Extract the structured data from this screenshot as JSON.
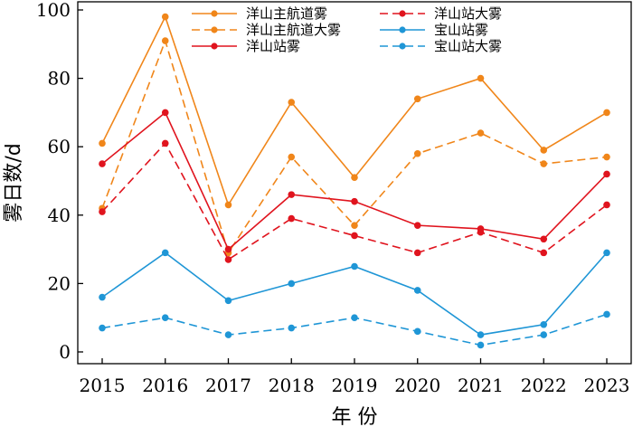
{
  "chart_data": {
    "type": "line",
    "title": "",
    "xlabel": "年 份",
    "ylabel": "雾日数/d",
    "categories": [
      "2015",
      "2016",
      "2017",
      "2018",
      "2019",
      "2020",
      "2021",
      "2022",
      "2023"
    ],
    "ylim": [
      0,
      100
    ],
    "yticks": [
      0,
      20,
      40,
      60,
      80,
      100
    ],
    "grid": false,
    "legend_position": "top",
    "series": [
      {
        "name": "洋山主航道雾",
        "color": "#F0861A",
        "dashed": false,
        "values": [
          61,
          98,
          43,
          73,
          51,
          74,
          80,
          59,
          70
        ]
      },
      {
        "name": "洋山主航道大雾",
        "color": "#F0861A",
        "dashed": true,
        "values": [
          42,
          91,
          29,
          57,
          37,
          58,
          64,
          55,
          57
        ]
      },
      {
        "name": "洋山站雾",
        "color": "#E0141E",
        "dashed": false,
        "values": [
          55,
          70,
          30,
          46,
          44,
          37,
          36,
          33,
          52
        ]
      },
      {
        "name": "洋山站大雾",
        "color": "#E0141E",
        "dashed": true,
        "values": [
          41,
          61,
          27,
          39,
          34,
          29,
          35,
          29,
          43
        ]
      },
      {
        "name": "宝山站雾",
        "color": "#1F96D6",
        "dashed": false,
        "values": [
          16,
          29,
          15,
          20,
          25,
          18,
          5,
          8,
          29
        ]
      },
      {
        "name": "宝山站大雾",
        "color": "#1F96D6",
        "dashed": true,
        "values": [
          7,
          10,
          5,
          7,
          10,
          6,
          2,
          5,
          11
        ]
      }
    ]
  }
}
